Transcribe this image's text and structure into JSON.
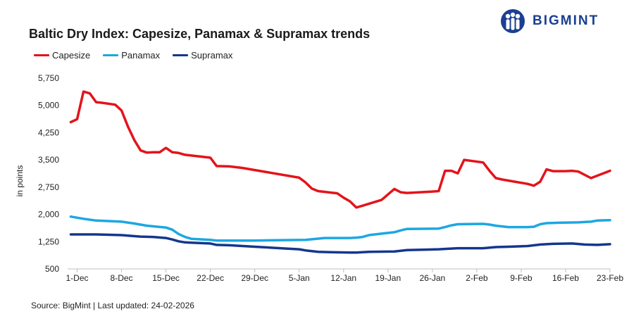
{
  "header": {
    "title": "Baltic Dry Index: Capesize, Panamax & Supramax trends",
    "logo_text": "BIGMINT"
  },
  "footer": {
    "source": "Source: BigMint | Last updated: 24-02-2026"
  },
  "chart_data": {
    "type": "line",
    "title": "Baltic Dry Index: Capesize, Panamax & Supramax trends",
    "xlabel": "",
    "ylabel": "in points",
    "ylim": [
      500,
      5750
    ],
    "yticks": [
      500,
      1250,
      2000,
      2750,
      3500,
      4250,
      5000,
      5750
    ],
    "ytick_labels": [
      "500",
      "1,250",
      "2,000",
      "2,750",
      "3,500",
      "4,250",
      "5,000",
      "5,750"
    ],
    "xlim": [
      0,
      84
    ],
    "xticks": [
      0,
      7,
      14,
      21,
      28,
      35,
      42,
      49,
      56,
      63,
      70,
      77,
      84
    ],
    "xtick_labels": [
      "1-Dec",
      "8-Dec",
      "15-Dec",
      "22-Dec",
      "29-Dec",
      "5-Jan",
      "12-Jan",
      "19-Jan",
      "26-Jan",
      "2-Feb",
      "9-Feb",
      "16-Feb",
      "23-Feb"
    ],
    "grid": false,
    "legend": "top-left",
    "series": [
      {
        "name": "Capesize",
        "color": "#e3141b",
        "points": [
          [
            -1,
            4540
          ],
          [
            0,
            4620
          ],
          [
            1,
            5380
          ],
          [
            2,
            5330
          ],
          [
            3,
            5090
          ],
          [
            4,
            5070
          ],
          [
            6,
            5020
          ],
          [
            7,
            4860
          ],
          [
            8,
            4420
          ],
          [
            9,
            4050
          ],
          [
            10,
            3760
          ],
          [
            11,
            3700
          ],
          [
            12,
            3710
          ],
          [
            13,
            3710
          ],
          [
            14,
            3830
          ],
          [
            15,
            3710
          ],
          [
            16,
            3690
          ],
          [
            17,
            3640
          ],
          [
            21,
            3560
          ],
          [
            22,
            3330
          ],
          [
            24,
            3320
          ],
          [
            26,
            3280
          ],
          [
            35,
            3010
          ],
          [
            36,
            2880
          ],
          [
            37,
            2710
          ],
          [
            38,
            2640
          ],
          [
            41,
            2580
          ],
          [
            42,
            2460
          ],
          [
            43,
            2360
          ],
          [
            44,
            2190
          ],
          [
            45,
            2240
          ],
          [
            48,
            2400
          ],
          [
            50,
            2700
          ],
          [
            51,
            2610
          ],
          [
            52,
            2590
          ],
          [
            56,
            2630
          ],
          [
            57,
            2640
          ],
          [
            58,
            3200
          ],
          [
            59,
            3200
          ],
          [
            60,
            3130
          ],
          [
            61,
            3500
          ],
          [
            64,
            3430
          ],
          [
            65,
            3200
          ],
          [
            66,
            3000
          ],
          [
            67,
            2960
          ],
          [
            69,
            2900
          ],
          [
            71,
            2840
          ],
          [
            72,
            2790
          ],
          [
            73,
            2900
          ],
          [
            74,
            3240
          ],
          [
            75,
            3190
          ],
          [
            77,
            3190
          ],
          [
            78,
            3200
          ],
          [
            79,
            3180
          ],
          [
            81,
            3000
          ],
          [
            84,
            3200
          ]
        ]
      },
      {
        "name": "Panamax",
        "color": "#1ca7e2",
        "points": [
          [
            -1,
            1940
          ],
          [
            1,
            1880
          ],
          [
            3,
            1830
          ],
          [
            7,
            1800
          ],
          [
            9,
            1750
          ],
          [
            11,
            1690
          ],
          [
            14,
            1640
          ],
          [
            15,
            1580
          ],
          [
            16,
            1460
          ],
          [
            17,
            1380
          ],
          [
            18,
            1330
          ],
          [
            21,
            1300
          ],
          [
            22,
            1280
          ],
          [
            28,
            1280
          ],
          [
            36,
            1300
          ],
          [
            39,
            1350
          ],
          [
            43,
            1350
          ],
          [
            44,
            1360
          ],
          [
            45,
            1380
          ],
          [
            46,
            1430
          ],
          [
            48,
            1470
          ],
          [
            50,
            1510
          ],
          [
            51,
            1560
          ],
          [
            52,
            1600
          ],
          [
            57,
            1610
          ],
          [
            58,
            1650
          ],
          [
            59,
            1700
          ],
          [
            60,
            1730
          ],
          [
            64,
            1740
          ],
          [
            65,
            1720
          ],
          [
            66,
            1690
          ],
          [
            67,
            1670
          ],
          [
            68,
            1650
          ],
          [
            71,
            1650
          ],
          [
            72,
            1660
          ],
          [
            73,
            1730
          ],
          [
            74,
            1760
          ],
          [
            76,
            1770
          ],
          [
            79,
            1780
          ],
          [
            81,
            1800
          ],
          [
            82,
            1830
          ],
          [
            84,
            1840
          ]
        ]
      },
      {
        "name": "Supramax",
        "color": "#14378d",
        "points": [
          [
            -1,
            1450
          ],
          [
            3,
            1450
          ],
          [
            7,
            1430
          ],
          [
            10,
            1390
          ],
          [
            12,
            1380
          ],
          [
            14,
            1350
          ],
          [
            15,
            1310
          ],
          [
            16,
            1260
          ],
          [
            17,
            1230
          ],
          [
            18,
            1220
          ],
          [
            21,
            1200
          ],
          [
            22,
            1160
          ],
          [
            24,
            1150
          ],
          [
            28,
            1110
          ],
          [
            33,
            1060
          ],
          [
            35,
            1040
          ],
          [
            36,
            1010
          ],
          [
            37,
            990
          ],
          [
            38,
            970
          ],
          [
            40,
            960
          ],
          [
            43,
            950
          ],
          [
            44,
            950
          ],
          [
            46,
            970
          ],
          [
            50,
            980
          ],
          [
            52,
            1020
          ],
          [
            55,
            1030
          ],
          [
            57,
            1040
          ],
          [
            59,
            1060
          ],
          [
            60,
            1070
          ],
          [
            64,
            1070
          ],
          [
            66,
            1100
          ],
          [
            68,
            1110
          ],
          [
            71,
            1130
          ],
          [
            73,
            1170
          ],
          [
            75,
            1190
          ],
          [
            78,
            1200
          ],
          [
            80,
            1170
          ],
          [
            82,
            1160
          ],
          [
            84,
            1180
          ]
        ]
      }
    ]
  }
}
